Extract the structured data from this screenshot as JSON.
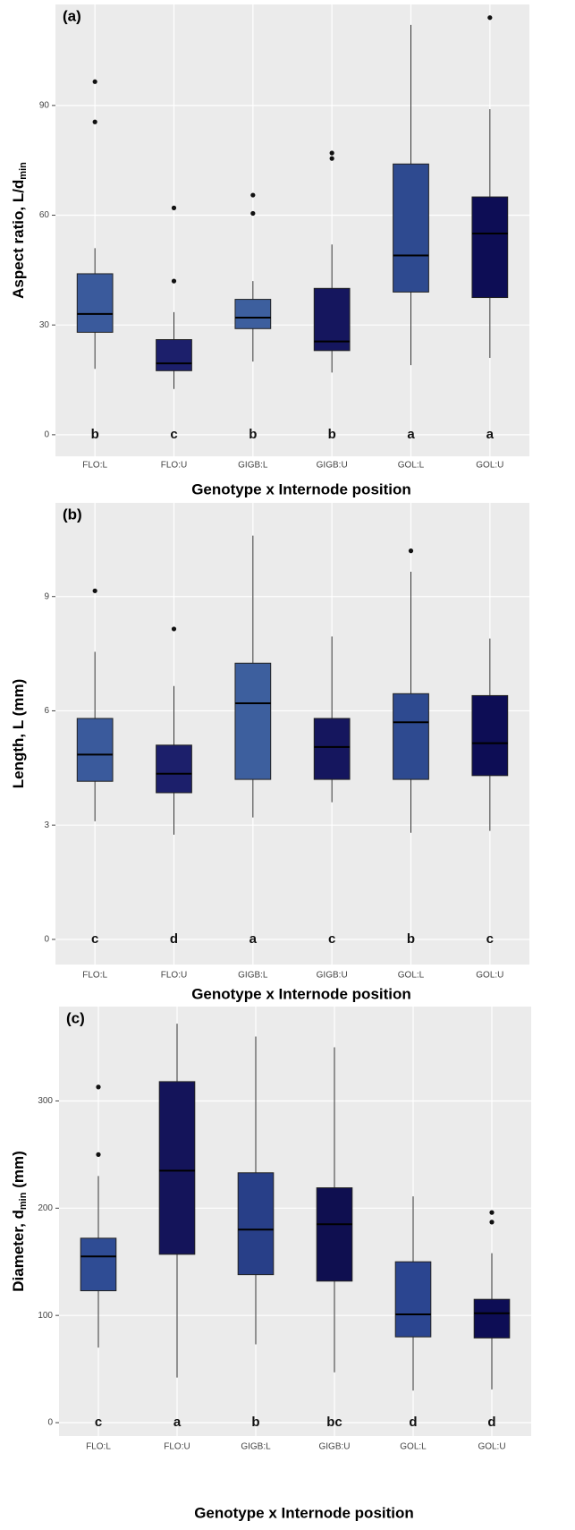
{
  "chart_data": [
    {
      "type": "box",
      "panel_label": "(a)",
      "xlabel": "Genotype x Internode position",
      "ylabel": [
        "Aspect ratio, L/d",
        "min"
      ],
      "categories": [
        "FLO:L",
        "FLO:U",
        "GIGB:L",
        "GIGB:U",
        "GOL:L",
        "GOL:U"
      ],
      "ylim": [
        -5.9,
        117.6
      ],
      "yticks": [
        0,
        30,
        60,
        90
      ],
      "grid": true,
      "boxes": [
        {
          "whisker_low": 18,
          "q1": 28,
          "median": 33,
          "q3": 44,
          "whisker_high": 51,
          "outliers": [
            85.5,
            96.5
          ],
          "color": "#3a5a9c",
          "letter": "b"
        },
        {
          "whisker_low": 12.5,
          "q1": 17.5,
          "median": 19.5,
          "q3": 26,
          "whisker_high": 33.5,
          "outliers": [
            42,
            62
          ],
          "color": "#1c1f6b",
          "letter": "c"
        },
        {
          "whisker_low": 20,
          "q1": 29,
          "median": 32,
          "q3": 37,
          "whisker_high": 42,
          "outliers": [
            60.5,
            65.5
          ],
          "color": "#3d5f9e",
          "letter": "b"
        },
        {
          "whisker_low": 17,
          "q1": 23,
          "median": 25.5,
          "q3": 40,
          "whisker_high": 52,
          "outliers": [
            75.5,
            77
          ],
          "color": "#15165e",
          "letter": "b"
        },
        {
          "whisker_low": 19,
          "q1": 39,
          "median": 49,
          "q3": 74,
          "whisker_high": 112,
          "outliers": [],
          "color": "#2e4a90",
          "letter": "a"
        },
        {
          "whisker_low": 21,
          "q1": 37.5,
          "median": 55,
          "q3": 65,
          "whisker_high": 89,
          "outliers": [
            114
          ],
          "color": "#0d0d55",
          "letter": "a"
        }
      ]
    },
    {
      "type": "box",
      "panel_label": "(b)",
      "xlabel": "Genotype x Internode position",
      "ylabel": [
        "Length, L (mm)"
      ],
      "categories": [
        "FLO:L",
        "FLO:U",
        "GIGB:L",
        "GIGB:U",
        "GOL:L",
        "GOL:U"
      ],
      "ylim": [
        -0.66,
        11.46
      ],
      "yticks": [
        0,
        3,
        6,
        9
      ],
      "grid": true,
      "boxes": [
        {
          "whisker_low": 3.1,
          "q1": 4.15,
          "median": 4.85,
          "q3": 5.8,
          "whisker_high": 7.55,
          "outliers": [
            9.15
          ],
          "color": "#3a5a9c",
          "letter": "c"
        },
        {
          "whisker_low": 2.75,
          "q1": 3.85,
          "median": 4.35,
          "q3": 5.1,
          "whisker_high": 6.65,
          "outliers": [
            8.15
          ],
          "color": "#1c1f6b",
          "letter": "d"
        },
        {
          "whisker_low": 3.2,
          "q1": 4.2,
          "median": 6.2,
          "q3": 7.25,
          "whisker_high": 10.6,
          "outliers": [],
          "color": "#3d5f9e",
          "letter": "a"
        },
        {
          "whisker_low": 3.6,
          "q1": 4.2,
          "median": 5.05,
          "q3": 5.8,
          "whisker_high": 7.95,
          "outliers": [],
          "color": "#15165e",
          "letter": "c"
        },
        {
          "whisker_low": 2.8,
          "q1": 4.2,
          "median": 5.7,
          "q3": 6.45,
          "whisker_high": 9.65,
          "outliers": [
            10.2
          ],
          "color": "#2e4a90",
          "letter": "b"
        },
        {
          "whisker_low": 2.85,
          "q1": 4.3,
          "median": 5.15,
          "q3": 6.4,
          "whisker_high": 7.9,
          "outliers": [],
          "color": "#0d0d55",
          "letter": "c"
        }
      ]
    },
    {
      "type": "box",
      "panel_label": "(c)",
      "xlabel": "Genotype x Internode position",
      "ylabel": [
        "Diameter, d",
        "min",
        " (mm)"
      ],
      "categories": [
        "FLO:L",
        "FLO:U",
        "GIGB:L",
        "GIGB:U",
        "GOL:L",
        "GOL:U"
      ],
      "ylim": [
        -12.5,
        388
      ],
      "yticks": [
        0,
        100,
        200,
        300
      ],
      "grid": true,
      "boxes": [
        {
          "whisker_low": 70,
          "q1": 123,
          "median": 155,
          "q3": 172,
          "whisker_high": 230,
          "outliers": [
            250,
            313
          ],
          "color": "#2f4c94",
          "letter": "c"
        },
        {
          "whisker_low": 42,
          "q1": 157,
          "median": 235,
          "q3": 318,
          "whisker_high": 372,
          "outliers": [],
          "color": "#14145a",
          "letter": "a"
        },
        {
          "whisker_low": 73,
          "q1": 138,
          "median": 180,
          "q3": 233,
          "whisker_high": 360,
          "outliers": [],
          "color": "#283f88",
          "letter": "b"
        },
        {
          "whisker_low": 47,
          "q1": 132,
          "median": 185,
          "q3": 219,
          "whisker_high": 350,
          "outliers": [],
          "color": "#0f0f50",
          "letter": "bc"
        },
        {
          "whisker_low": 30,
          "q1": 80,
          "median": 101,
          "q3": 150,
          "whisker_high": 211,
          "outliers": [],
          "color": "#2b4590",
          "letter": "d"
        },
        {
          "whisker_low": 31,
          "q1": 79,
          "median": 102,
          "q3": 115,
          "whisker_high": 158,
          "outliers": [
            187,
            196
          ],
          "color": "#0d0d55",
          "letter": "d"
        }
      ]
    }
  ]
}
